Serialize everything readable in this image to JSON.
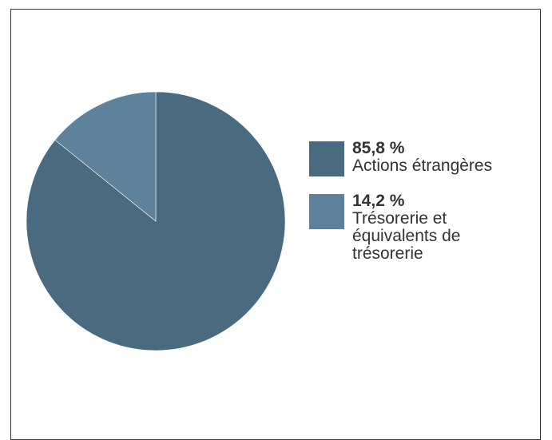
{
  "chart_data": {
    "type": "pie",
    "slices": [
      {
        "name": "Actions étrangères",
        "percent_label": "85,8 %",
        "value": 85.8,
        "color": "#4a6a80"
      },
      {
        "name": "Trésorerie et équivalents de trésorerie",
        "percent_label": "14,2 %",
        "value": 14.2,
        "color": "#5f829c"
      }
    ],
    "legend_position": "right"
  }
}
